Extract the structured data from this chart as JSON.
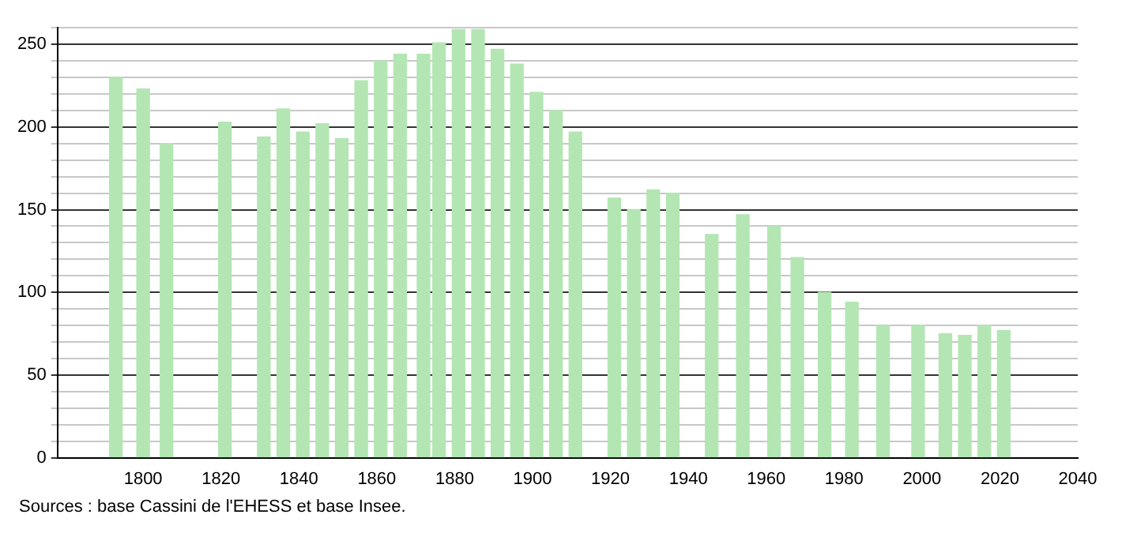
{
  "chart_data": {
    "type": "bar",
    "x": [
      1793,
      1800,
      1806,
      1821,
      1831,
      1836,
      1841,
      1846,
      1851,
      1856,
      1861,
      1866,
      1872,
      1876,
      1881,
      1886,
      1891,
      1896,
      1901,
      1906,
      1911,
      1921,
      1926,
      1931,
      1936,
      1946,
      1954,
      1962,
      1968,
      1975,
      1982,
      1990,
      1999,
      2006,
      2011,
      2016,
      2021
    ],
    "values": [
      230,
      223,
      190,
      203,
      194,
      211,
      197,
      202,
      193,
      228,
      240,
      244,
      244,
      251,
      259,
      259,
      247,
      238,
      221,
      210,
      197,
      157,
      150,
      162,
      160,
      135,
      147,
      140,
      121,
      100,
      94,
      80,
      80,
      75,
      74,
      80,
      77
    ],
    "color": "#b3e6b3",
    "xlim": [
      1778,
      2040
    ],
    "xticks": [
      1800,
      1820,
      1840,
      1860,
      1880,
      1900,
      1920,
      1940,
      1960,
      1980,
      2000,
      2020,
      2040
    ],
    "ylim": [
      0,
      260
    ],
    "yticks": [
      0,
      {
        "value": 10,
        "label": null
      },
      {
        "value": 20,
        "label": null
      },
      {
        "value": 30,
        "label": null
      },
      {
        "value": 40,
        "label": null
      },
      50,
      {
        "value": 60,
        "label": null
      },
      {
        "value": 70,
        "label": null
      },
      {
        "value": 80,
        "label": null
      },
      {
        "value": 90,
        "label": null
      },
      100,
      {
        "value": 110,
        "label": null
      },
      {
        "value": 120,
        "label": null
      },
      {
        "value": 130,
        "label": null
      },
      {
        "value": 140,
        "label": null
      },
      150,
      {
        "value": 160,
        "label": null
      },
      {
        "value": 170,
        "label": null
      },
      {
        "value": 180,
        "label": null
      },
      {
        "value": 190,
        "label": null
      },
      200,
      {
        "value": 210,
        "label": null
      },
      {
        "value": 220,
        "label": null
      },
      {
        "value": 230,
        "label": null
      },
      {
        "value": 240,
        "label": null
      },
      250,
      {
        "value": 260,
        "label": null
      }
    ],
    "grid": "y",
    "annotations": [
      "Sources : base Cassini de l'EHESS et base Insee."
    ]
  }
}
